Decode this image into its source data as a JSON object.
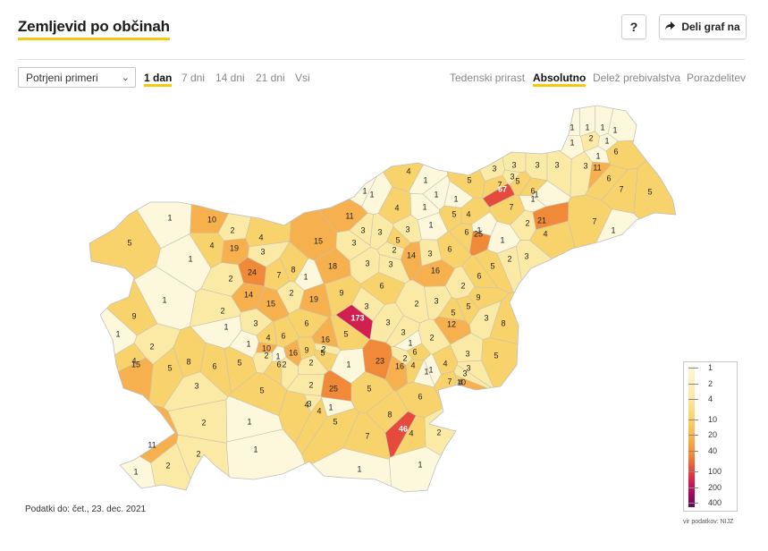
{
  "header": {
    "title": "Zemljevid po občinah",
    "help_label": "?",
    "share_label": "Deli graf na",
    "share_icon": "share-arrow-icon"
  },
  "filters": {
    "select_value": "Potrjeni primeri",
    "periods": [
      "1 dan",
      "7 dni",
      "14 dni",
      "21 dni",
      "Vsi"
    ],
    "active_period": "1 dan",
    "modes": [
      "Tedenski prirast",
      "Absolutno",
      "Delež prebivalstva",
      "Porazdelitev"
    ],
    "active_mode": "Absolutno"
  },
  "legend": {
    "labels": [
      "1",
      "2",
      "4",
      "10",
      "20",
      "40",
      "100",
      "200",
      "400"
    ]
  },
  "footer": {
    "date": "Podatki do: čet., 23. dec. 2021",
    "source": "vir podatkov: NIJZ"
  },
  "colors": {
    "accent": "#f6c90e",
    "scale": [
      "#fdf7dc",
      "#fbe9a6",
      "#f8d26a",
      "#f6b04e",
      "#f08a38",
      "#e54a3c",
      "#d11f4f",
      "#a8095c",
      "#5e0a5a"
    ]
  },
  "map_values": [
    1,
    1,
    1,
    1,
    2,
    1,
    1,
    3,
    3,
    3,
    3,
    6,
    1,
    11,
    6,
    3,
    3,
    5,
    7,
    5,
    1,
    67,
    6,
    7,
    1,
    5,
    7,
    21,
    2,
    4,
    7,
    1,
    1,
    10,
    2,
    4,
    5,
    1,
    4,
    19,
    3,
    24,
    2,
    14,
    15,
    7,
    8,
    2,
    1,
    19,
    18,
    3,
    3,
    5,
    3,
    3,
    1,
    1,
    4,
    11,
    15,
    3,
    4,
    1,
    1,
    3,
    1,
    1,
    14,
    3,
    2,
    1,
    6,
    1,
    16,
    25,
    4,
    5,
    1,
    5,
    2,
    3,
    6,
    6,
    2,
    5,
    5,
    1,
    9,
    2,
    6,
    2,
    15,
    1,
    4,
    8,
    5,
    1,
    3,
    4,
    2,
    6,
    6,
    173,
    5,
    9,
    5,
    3,
    6,
    2,
    3,
    3,
    3,
    3,
    2,
    12,
    6,
    9,
    8,
    1,
    10,
    1,
    6,
    9,
    2,
    16,
    16,
    2,
    1,
    23,
    16,
    4,
    2,
    3,
    5,
    1,
    1,
    7,
    4,
    4,
    1,
    3,
    5,
    2,
    5,
    4,
    25,
    5,
    10,
    6,
    7,
    1,
    2,
    1,
    1,
    2,
    3,
    4,
    5,
    8,
    46,
    2,
    11,
    1,
    2,
    2,
    1,
    4,
    1,
    3,
    3
  ]
}
